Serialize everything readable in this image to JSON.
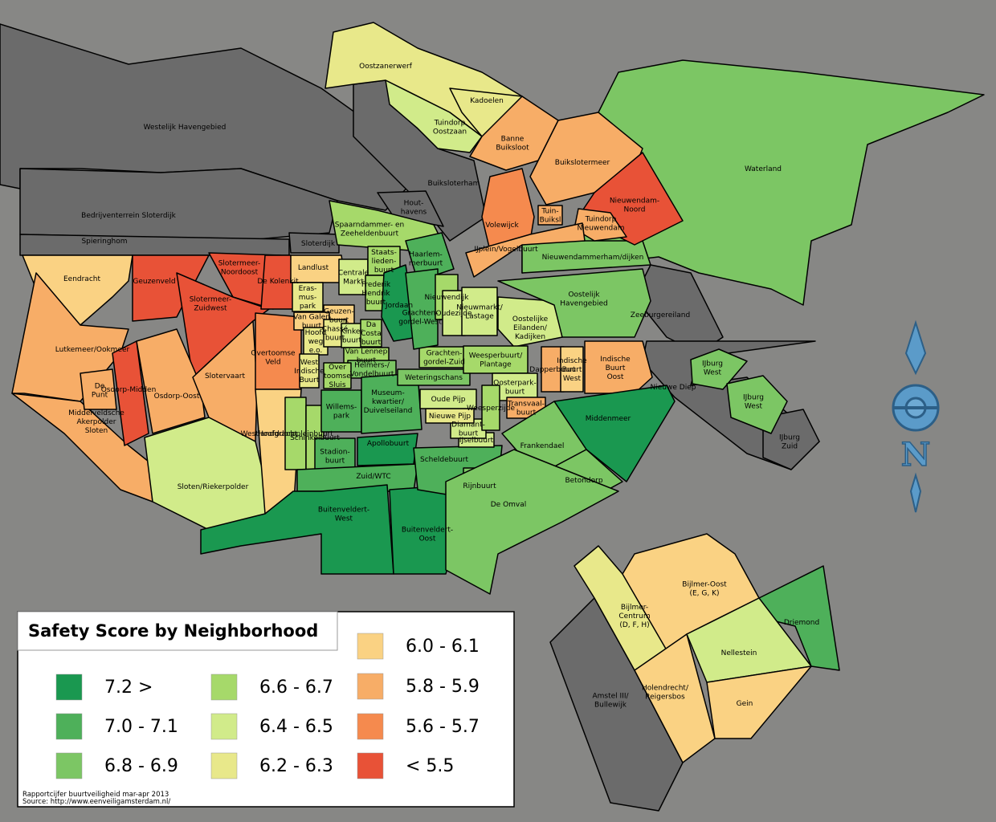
{
  "map": {
    "title": "Safety Score by Neighborhood",
    "source_lines": [
      "Rapportcijfer buurtveiligheid mar-apr 2013",
      "Source: http://www.eenveiligamsterdam.nl/"
    ],
    "compass_letter": "N",
    "legend": [
      {
        "label": "7.2 >",
        "color": "#1a9850"
      },
      {
        "label": "7.0 - 7.1",
        "color": "#4eb05a"
      },
      {
        "label": "6.8 - 6.9",
        "color": "#7cc664"
      },
      {
        "label": "6.6 - 6.7",
        "color": "#a6d96a"
      },
      {
        "label": "6.4 - 6.5",
        "color": "#d1eb8a"
      },
      {
        "label": "6.2 - 6.3",
        "color": "#e8e88a"
      },
      {
        "label": "6.0 - 6.1",
        "color": "#fad283"
      },
      {
        "label": "5.8 - 5.9",
        "color": "#f7ad67"
      },
      {
        "label": "5.6 - 5.7",
        "color": "#f58a4e"
      },
      {
        "label": "< 5.5",
        "color": "#e85237"
      }
    ],
    "neighborhoods": [
      {
        "label": "Westelijk Havengebied",
        "color": "#6b6b6b"
      },
      {
        "label": "Bedrijventerrein Sloterdijk",
        "color": "#6b6b6b"
      },
      {
        "label": "Spieringhom",
        "color": "#6b6b6b"
      },
      {
        "label": "Buiksloterham",
        "color": "#6b6b6b"
      },
      {
        "label": "Hout-\nhavens",
        "color": "#6b6b6b"
      },
      {
        "label": "Sloterdijk",
        "color": "#6b6b6b"
      },
      {
        "label": "Zeeburgereiland",
        "color": "#6b6b6b"
      },
      {
        "label": "Nieuwe Diep",
        "color": "#6b6b6b"
      },
      {
        "label": "IJburg\nZuid",
        "color": "#6b6b6b"
      },
      {
        "label": "Amstel III/\nBullewijk",
        "color": "#6b6b6b"
      },
      {
        "label": "Waterland",
        "color": "#7cc664"
      },
      {
        "label": "Oostzanerwerf",
        "color": "#e8e88a"
      },
      {
        "label": "Kadoelen",
        "color": "#e8e88a"
      },
      {
        "label": "Tuindorp\nOostzaan",
        "color": "#d1eb8a"
      },
      {
        "label": "Banne\nBuiksloot",
        "color": "#f7ad67"
      },
      {
        "label": "Buikslotermeer",
        "color": "#f7ad67"
      },
      {
        "label": "Nieuwendammerham/dijken",
        "color": "#7cc664"
      },
      {
        "label": "Nieuwendam-\nNoord",
        "color": "#e85237"
      },
      {
        "label": "Tuindorp\nNieuwendam",
        "color": "#f7ad67"
      },
      {
        "label": "Tuin-\nBuiksl",
        "color": "#f7ad67"
      },
      {
        "label": "Volewijck",
        "color": "#f58a4e"
      },
      {
        "label": "IJplein/Vogelbuurt",
        "color": "#f7ad67"
      },
      {
        "label": "Spaarndammer- en\nZeeheldenbuurt",
        "color": "#a6d96a"
      },
      {
        "label": "Eendracht",
        "color": "#fad283"
      },
      {
        "label": "Geuzenveld",
        "color": "#e85237"
      },
      {
        "label": "Slotermeer-\nNoordoost",
        "color": "#e85237"
      },
      {
        "label": "Slotermeer-\nZuidwest",
        "color": "#e85237"
      },
      {
        "label": "Lutkemeer/Ookmeer",
        "color": "#f7ad67"
      },
      {
        "label": "Middelveldsche\nAkerpolder\nSloten",
        "color": "#f7ad67"
      },
      {
        "label": "De\nPunt",
        "color": "#f7ad67"
      },
      {
        "label": "Osdorp-Midden",
        "color": "#e85237"
      },
      {
        "label": "Osdorp-Oost",
        "color": "#f7ad67"
      },
      {
        "label": "Slotervaart",
        "color": "#f7ad67"
      },
      {
        "label": "Sloten/Riekerpolder",
        "color": "#d1eb8a"
      },
      {
        "label": "Overtoomse\nVeld",
        "color": "#f58a4e"
      },
      {
        "label": "Westlandgracht",
        "color": "#fad283"
      },
      {
        "label": "De Kolenkit",
        "color": "#e85237"
      },
      {
        "label": "Landlust",
        "color": "#fad283"
      },
      {
        "label": "Eras-\nmus-\npark",
        "color": "#e8e88a"
      },
      {
        "label": "Geuzen-\nbuurt",
        "color": "#fad283"
      },
      {
        "label": "Van Galen\nbuurt",
        "color": "#fad283"
      },
      {
        "label": "Hoofd\nweg\ne.o.",
        "color": "#e8e88a"
      },
      {
        "label": "Chassé\nbuurt",
        "color": "#e8e88a"
      },
      {
        "label": "Centrale\nMarkt",
        "color": "#d1eb8a"
      },
      {
        "label": "Staats-\nlieden-\nbuurt",
        "color": "#a6d96a"
      },
      {
        "label": "Frederik\nHendrik\nbuurt",
        "color": "#a6d96a"
      },
      {
        "label": "Kinker\nbuurt",
        "color": "#d1eb8a"
      },
      {
        "label": "Da\nCosta\nbuurt",
        "color": "#a6d96a"
      },
      {
        "label": "Van Lennep\nbuurt",
        "color": "#a6d96a"
      },
      {
        "label": "Helmers-/\nVondelbuurt",
        "color": "#7cc664"
      },
      {
        "label": "Over\ntoomse\nSluis",
        "color": "#a6d96a"
      },
      {
        "label": "West\nIndische\nBuurt",
        "color": "#e8e88a"
      },
      {
        "label": "Hoofddorppleinbuurt",
        "color": "#a6d96a"
      },
      {
        "label": "Schinkelbuurt",
        "color": "#a6d96a"
      },
      {
        "label": "Willems-\npark",
        "color": "#4eb05a"
      },
      {
        "label": "Museum-\nkwartier/\nDuivelseiland",
        "color": "#4eb05a"
      },
      {
        "label": "Stadion-\nbuurt",
        "color": "#4eb05a"
      },
      {
        "label": "Apollobuurt",
        "color": "#1a9850"
      },
      {
        "label": "Zuid/WTC",
        "color": "#4eb05a"
      },
      {
        "label": "Buitenveldert-\nWest",
        "color": "#1a9850"
      },
      {
        "label": "Buitenveldert-\nOost",
        "color": "#1a9850"
      },
      {
        "label": "Scheldebuurt",
        "color": "#4eb05a"
      },
      {
        "label": "Rijnbuurt",
        "color": "#7cc664"
      },
      {
        "label": "IJselbuurt",
        "color": "#d1eb8a"
      },
      {
        "label": "Diamant-\nbuurt",
        "color": "#d1eb8a"
      },
      {
        "label": "Nieuwe Pijp",
        "color": "#e8e88a"
      },
      {
        "label": "Oude Pijp",
        "color": "#d1eb8a"
      },
      {
        "label": "Weteringschans",
        "color": "#7cc664"
      },
      {
        "label": "Grachten-\ngordel-Zuid",
        "color": "#a6d96a"
      },
      {
        "label": "Jordaan",
        "color": "#1a9850"
      },
      {
        "label": "Haarlem-\nmerbuurt",
        "color": "#4eb05a"
      },
      {
        "label": "Grachten-\ngordel-West",
        "color": "#4eb05a"
      },
      {
        "label": "Nieuwendijk",
        "color": "#a6d96a"
      },
      {
        "label": "Oudezijde",
        "color": "#d1eb8a"
      },
      {
        "label": "Nieuwmarkt/\nLastage",
        "color": "#d1eb8a"
      },
      {
        "label": "Oostelijke\nEilanden/\nKadijken",
        "color": "#d1eb8a"
      },
      {
        "label": "Oostelijk\nHavengebied",
        "color": "#7cc664"
      },
      {
        "label": "Weesperbuurt/\nPlantage",
        "color": "#a6d96a"
      },
      {
        "label": "Dapperbuurt",
        "color": "#f7ad67"
      },
      {
        "label": "Indische\nBuurt\nWest",
        "color": "#fad283"
      },
      {
        "label": "Indische\nBuurt\nOost",
        "color": "#f7ad67"
      },
      {
        "label": "Oosterpark-\nbuurt",
        "color": "#d1eb8a"
      },
      {
        "label": "Transvaal-\nbuurt",
        "color": "#f7ad67"
      },
      {
        "label": "Weesperzijde",
        "color": "#a6d96a"
      },
      {
        "label": "Middenmeer",
        "color": "#1a9850"
      },
      {
        "label": "Frankendael",
        "color": "#7cc664"
      },
      {
        "label": "Betondorp",
        "color": "#7cc664"
      },
      {
        "label": "De Omval",
        "color": "#7cc664"
      },
      {
        "label": "IJburg\nWest",
        "color": "#7cc664"
      },
      {
        "label": "IJburg\nWest",
        "color": "#7cc664"
      },
      {
        "label": "Bijlmer-\nCentrum\n(D, F, H)",
        "color": "#e8e88a"
      },
      {
        "label": "Bijlmer-Oost\n(E, G, K)",
        "color": "#fad283"
      },
      {
        "label": "Driemond",
        "color": "#4eb05a"
      },
      {
        "label": "Nellestein",
        "color": "#d1eb8a"
      },
      {
        "label": "Holendrecht/\nReigersbos",
        "color": "#fad283"
      },
      {
        "label": "Gein",
        "color": "#fad283"
      }
    ]
  }
}
